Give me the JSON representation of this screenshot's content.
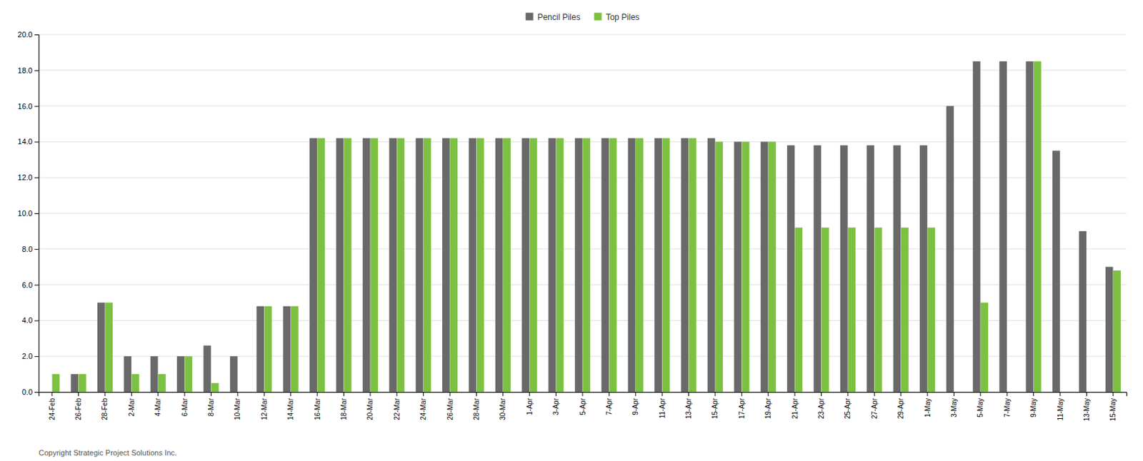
{
  "chart_data": {
    "type": "bar",
    "categories": [
      "24-Feb",
      "26-Feb",
      "28-Feb",
      "2-Mar",
      "4-Mar",
      "6-Mar",
      "8-Mar",
      "10-Mar",
      "12-Mar",
      "14-Mar",
      "16-Mar",
      "18-Mar",
      "20-Mar",
      "22-Mar",
      "24-Mar",
      "26-Mar",
      "28-Mar",
      "30-Mar",
      "1-Apr",
      "3-Apr",
      "5-Apr",
      "7-Apr",
      "9-Apr",
      "11-Apr",
      "13-Apr",
      "15-Apr",
      "17-Apr",
      "19-Apr",
      "21-Apr",
      "23-Apr",
      "25-Apr",
      "27-Apr",
      "29-Apr",
      "1-May",
      "3-May",
      "5-May",
      "7-May",
      "9-May",
      "11-May",
      "13-May",
      "15-May"
    ],
    "series": [
      {
        "name": "Pencil Piles",
        "color": "#696969",
        "values": [
          0,
          1.0,
          5.0,
          2.0,
          2.0,
          2.0,
          2.6,
          2.0,
          4.8,
          4.8,
          14.2,
          14.2,
          14.2,
          14.2,
          14.2,
          14.2,
          14.2,
          14.2,
          14.2,
          14.2,
          14.2,
          14.2,
          14.2,
          14.2,
          14.2,
          14.2,
          14.0,
          14.0,
          13.8,
          13.8,
          13.8,
          13.8,
          13.8,
          13.8,
          16.0,
          18.5,
          18.5,
          18.5,
          13.5,
          9.0,
          7.0
        ]
      },
      {
        "name": "Top Piles",
        "color": "#7dc142",
        "values": [
          1.0,
          1.0,
          5.0,
          1.0,
          1.0,
          2.0,
          0.5,
          0,
          4.8,
          4.8,
          14.2,
          14.2,
          14.2,
          14.2,
          14.2,
          14.2,
          14.2,
          14.2,
          14.2,
          14.2,
          14.2,
          14.2,
          14.2,
          14.2,
          14.2,
          14.0,
          14.0,
          14.0,
          9.2,
          9.2,
          9.2,
          9.2,
          9.2,
          9.2,
          0,
          5.0,
          0,
          18.5,
          0,
          0,
          6.8
        ]
      }
    ],
    "ylim": [
      0,
      20.0
    ],
    "yticks": [
      {
        "value": 0.0,
        "label": "0.0"
      },
      {
        "value": 2.0,
        "label": "2.0"
      },
      {
        "value": 4.0,
        "label": "4.0"
      },
      {
        "value": 6.0,
        "label": "6.0"
      },
      {
        "value": 8.0,
        "label": "8.0"
      },
      {
        "value": 10.0,
        "label": "10.0"
      },
      {
        "value": 12.0,
        "label": "12.0"
      },
      {
        "value": 14.0,
        "label": "14.0"
      },
      {
        "value": 16.0,
        "label": "16.0"
      },
      {
        "value": 18.0,
        "label": "18.0"
      },
      {
        "value": 20.0,
        "label": "20.0"
      }
    ],
    "grid": true,
    "legend": "top",
    "annotations": [
      "Copyright Strategic Project Solutions Inc."
    ]
  }
}
